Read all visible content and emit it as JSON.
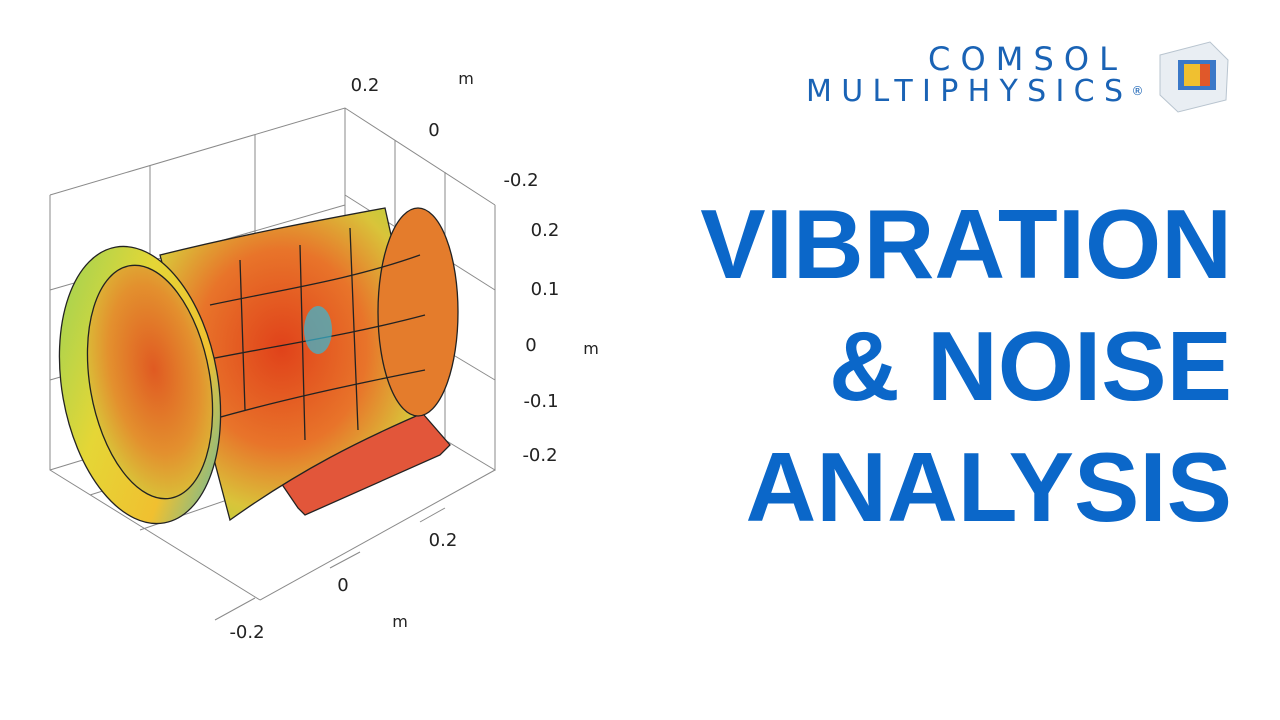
{
  "logo": {
    "line1": "COMSOL",
    "line2": "MULTIPHYSICS",
    "mark": "®"
  },
  "title": {
    "lines": [
      "VIBRATION",
      "& NOISE",
      "ANALYSIS"
    ]
  },
  "plot": {
    "top_axis": {
      "ticks": [
        "0.2",
        "0",
        "-0.2"
      ],
      "unit": "m"
    },
    "right_axis": {
      "ticks": [
        "0.2",
        "0.1",
        "0",
        "-0.1",
        "-0.2"
      ],
      "unit": "m"
    },
    "bottom_axis": {
      "ticks": [
        "0.2",
        "0",
        "-0.2"
      ],
      "unit": "m"
    }
  }
}
